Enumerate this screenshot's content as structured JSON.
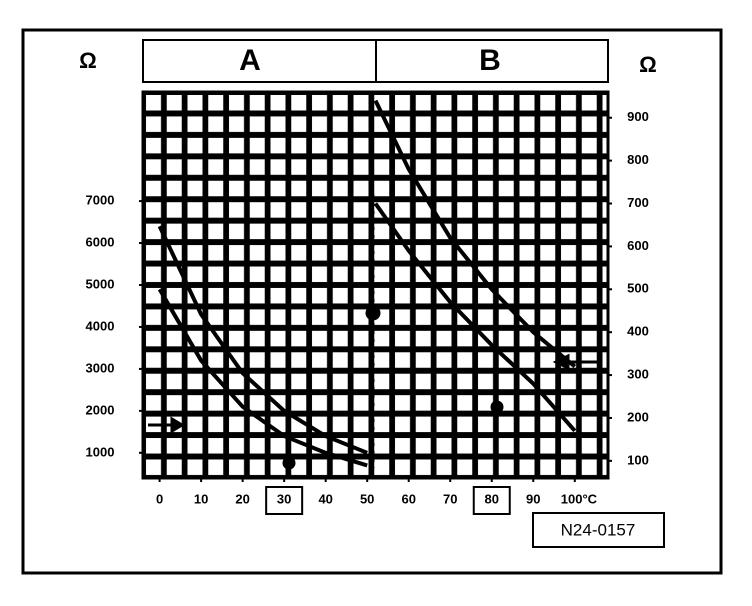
{
  "chart_data": {
    "type": "line",
    "ranges": [
      "A",
      "B"
    ],
    "ylabel": "Ω",
    "y2label": "Ω",
    "code": "N24-0157",
    "xlim": [
      -4,
      108
    ],
    "xticks": [
      0,
      10,
      20,
      30,
      40,
      50,
      60,
      70,
      80,
      90,
      {
        "value": 100,
        "label": "100°C"
      }
    ],
    "boxed_xticks": [
      30,
      80
    ],
    "ylim": [
      400,
      9600
    ],
    "yticks": [
      1000,
      2000,
      3000,
      4000,
      5000,
      6000,
      7000
    ],
    "y2lim": [
      60,
      960
    ],
    "y2ticks": [
      100,
      200,
      300,
      400,
      500,
      600,
      700,
      800,
      900
    ],
    "series": [
      {
        "color": "#000",
        "x": [
          0,
          10,
          20,
          30,
          40,
          50
        ],
        "values": [
          6400,
          4300,
          2900,
          2000,
          1400,
          1000
        ]
      },
      {
        "color": "#000",
        "x": [
          0,
          10,
          20,
          30,
          40,
          50
        ],
        "values": [
          4900,
          3200,
          2100,
          1400,
          1000,
          700
        ]
      },
      {
        "color": "#000",
        "axis": "y2",
        "x": [
          52,
          60,
          70,
          80,
          90,
          100
        ],
        "values": [
          940,
          780,
          620,
          500,
          400,
          320
        ]
      },
      {
        "color": "#000",
        "axis": "y2",
        "x": [
          52,
          60,
          70,
          80,
          90,
          100
        ],
        "values": [
          700,
          590,
          470,
          370,
          280,
          170
        ]
      }
    ]
  }
}
